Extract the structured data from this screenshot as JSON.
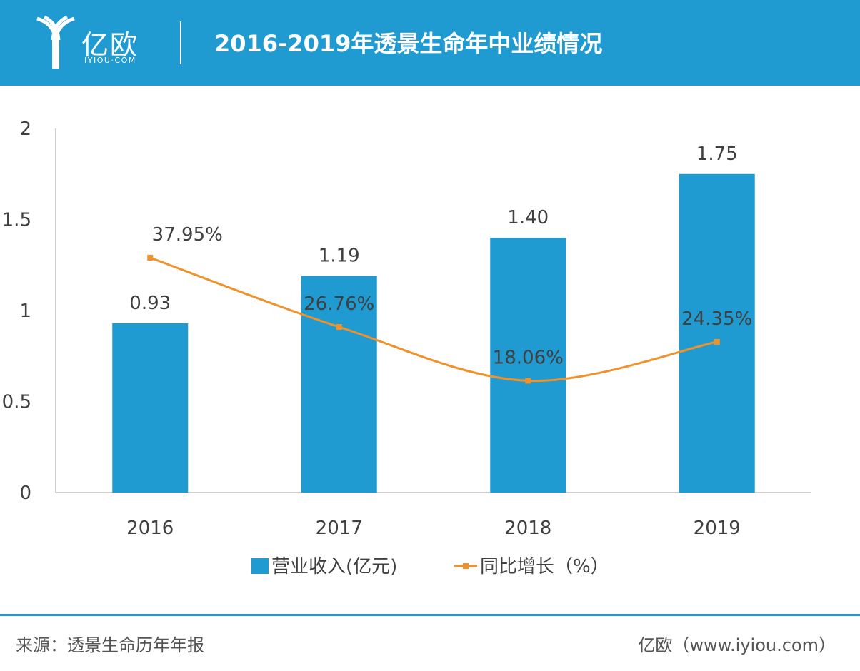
{
  "header": {
    "logo_text": "亿欧",
    "logo_subtext": "IYIOU·COM",
    "title": "2016-2019年透景生命年中业绩情况"
  },
  "colors": {
    "header_bg": "#1f9bd2",
    "bar": "#1f9bd2",
    "line": "#f0922b",
    "axis": "#bfbfbf",
    "text": "#404040"
  },
  "chart_data": {
    "type": "bar",
    "categories": [
      "2016",
      "2017",
      "2018",
      "2019"
    ],
    "ylim": [
      0,
      2
    ],
    "yticks": [
      "0",
      "0.5",
      "1",
      "1.5",
      "2"
    ],
    "grid": false,
    "legend_position": "bottom",
    "series": [
      {
        "name": "营业收入(亿元)",
        "kind": "bar",
        "values": [
          0.93,
          1.19,
          1.4,
          1.75
        ],
        "labels": [
          "0.93",
          "1.19",
          "1.40",
          "1.75"
        ]
      },
      {
        "name": "同比增长（%）",
        "kind": "line",
        "values": [
          37.95,
          26.76,
          18.06,
          24.35
        ],
        "labels": [
          "37.95%",
          "26.76%",
          "18.06%",
          "24.35%"
        ]
      }
    ]
  },
  "footer": {
    "source": "来源：透景生命历年年报",
    "credit": "亿欧（www.iyiou.com）"
  }
}
